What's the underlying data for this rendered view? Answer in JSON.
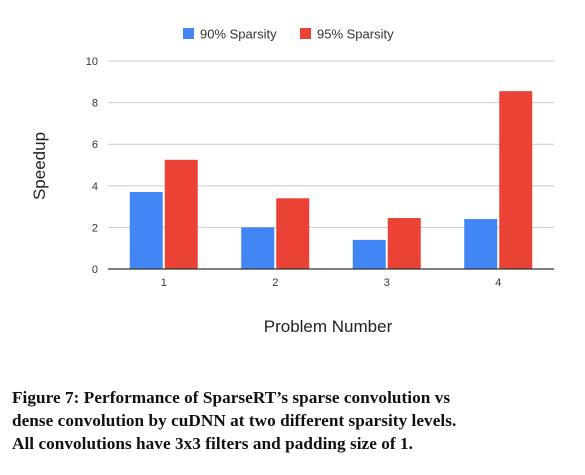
{
  "chart_data": {
    "type": "bar",
    "categories": [
      "1",
      "2",
      "3",
      "4"
    ],
    "series": [
      {
        "name": "90% Sparsity",
        "values": [
          3.7,
          2.0,
          1.4,
          2.4
        ],
        "color": "#4285f4"
      },
      {
        "name": "95% Sparsity",
        "values": [
          5.25,
          3.4,
          2.45,
          8.55
        ],
        "color": "#ea4335"
      }
    ],
    "xlabel": "Problem Number",
    "ylabel": "Speedup",
    "ylim": [
      0,
      10
    ],
    "yticks": [
      "0",
      "2",
      "4",
      "6",
      "8",
      "10"
    ],
    "grid": true,
    "legend_position": "top"
  },
  "caption": {
    "lines": [
      "Figure 7: Performance of SparseRT’s sparse convolution vs",
      "dense convolution by cuDNN at two different sparsity levels.",
      "All convolutions have 3x3 filters and padding size of 1."
    ]
  }
}
